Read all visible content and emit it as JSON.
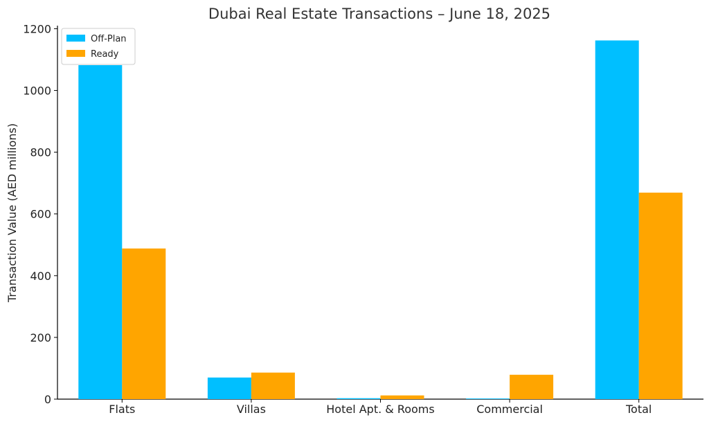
{
  "chart_data": {
    "type": "bar",
    "title": "Dubai Real Estate Transactions – June 18, 2025",
    "xlabel": "",
    "ylabel": "Transaction Value (AED millions)",
    "categories": [
      "Flats",
      "Villas",
      "Hotel Apt. & Rooms",
      "Commercial",
      "Total"
    ],
    "series": [
      {
        "name": "Off-Plan",
        "values": [
          1082,
          70,
          3,
          2,
          1162
        ],
        "color": "#00BFFF"
      },
      {
        "name": "Ready",
        "values": [
          488,
          86,
          12,
          79,
          669
        ],
        "color": "#FFA500"
      }
    ],
    "ylim": [
      0,
      1210
    ],
    "yticks": [
      0,
      200,
      400,
      600,
      800,
      1000,
      1200
    ],
    "grid": false,
    "legend_position": "top-left"
  }
}
